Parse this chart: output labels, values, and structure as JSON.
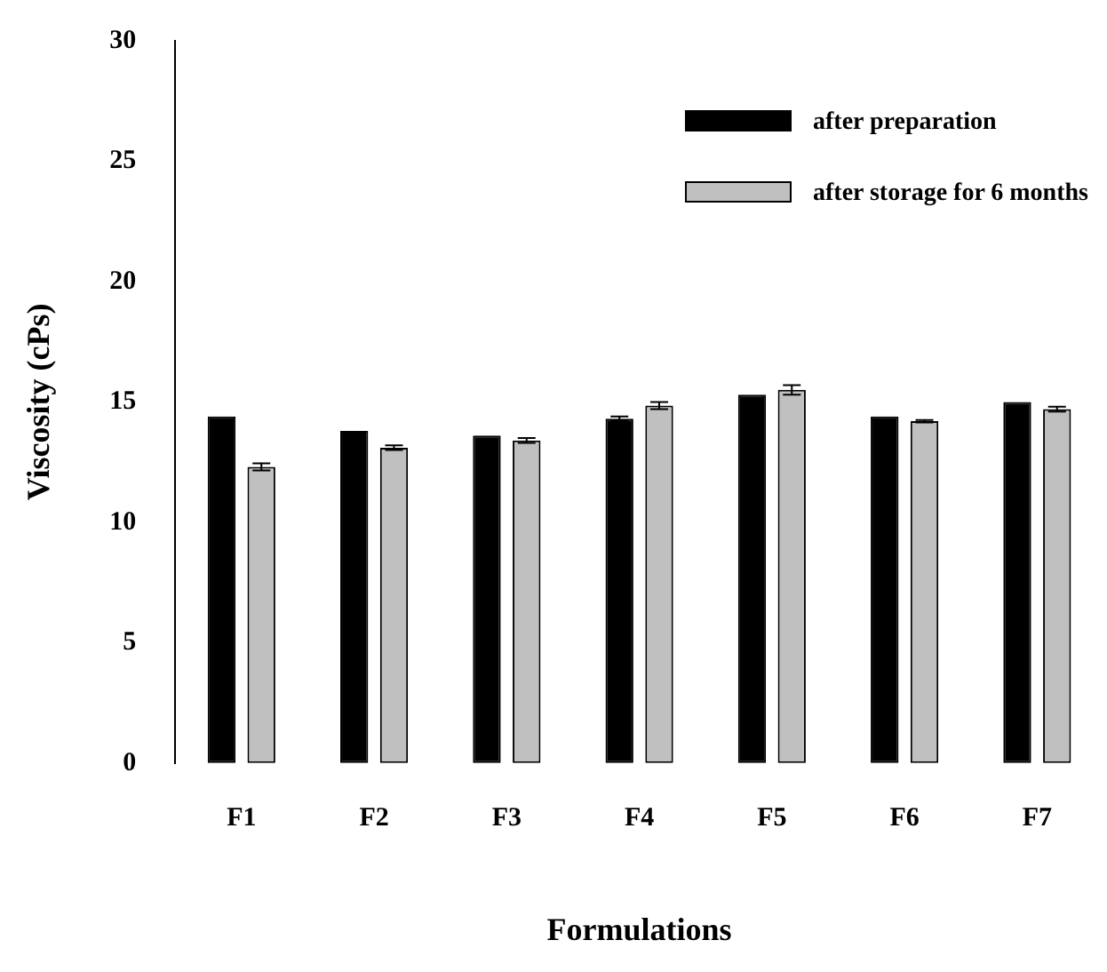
{
  "chart_data": {
    "type": "bar",
    "xlabel": "Formulations",
    "ylabel": "Viscosity (cPs)",
    "categories": [
      "F1",
      "F2",
      "F3",
      "F4",
      "F5",
      "F6",
      "F7"
    ],
    "series": [
      {
        "name": "after preparation",
        "color": "#000000",
        "values": [
          14.4,
          13.8,
          13.6,
          14.3,
          15.3,
          14.4,
          15.0
        ],
        "errors": [
          null,
          null,
          null,
          0.1,
          null,
          null,
          null
        ]
      },
      {
        "name": "after storage for 6 months",
        "color": "#c0c0c0",
        "values": [
          12.3,
          13.1,
          13.4,
          14.85,
          15.5,
          14.2,
          14.7
        ],
        "errors": [
          0.15,
          0.1,
          0.1,
          0.15,
          0.2,
          0.05,
          0.1
        ]
      }
    ],
    "ylim": [
      0,
      30
    ],
    "yticks": [
      0,
      5,
      10,
      15,
      20,
      25,
      30
    ],
    "grid": false,
    "legend": "top right"
  }
}
